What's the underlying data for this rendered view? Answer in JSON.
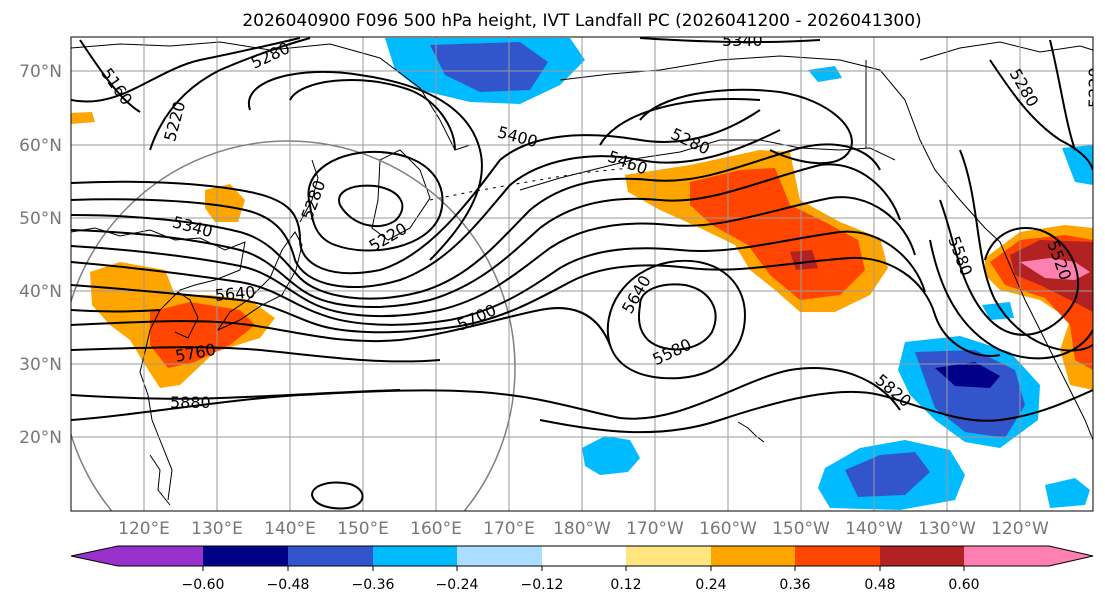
{
  "title": "2026040900 F096 500 hPa height, IVT Landfall PC (2026041200 - 2026041300)",
  "colors": {
    "land": "#ffffff",
    "grid": "#9a9a9a",
    "coast": "#000000",
    "contour": "#000000",
    "circle": "#808080"
  },
  "lat_labels": [
    "70°N",
    "60°N",
    "50°N",
    "40°N",
    "30°N",
    "20°N"
  ],
  "lon_labels": [
    "120°E",
    "130°E",
    "140°E",
    "150°E",
    "160°E",
    "170°E",
    "180°W",
    "170°W",
    "160°W",
    "150°W",
    "140°W",
    "130°W",
    "120°W"
  ],
  "contour_labels": [
    "5160",
    "5280",
    "5220",
    "5340",
    "5280",
    "5220",
    "5400",
    "5460",
    "5280",
    "5580",
    "5520",
    "5640",
    "5700",
    "5760",
    "5880",
    "5580",
    "5640",
    "5820",
    "5340",
    "5280",
    "5220"
  ],
  "colorbar": {
    "ticks": [
      "−0.60",
      "−0.48",
      "−0.36",
      "−0.24",
      "−0.12",
      "0.12",
      "0.24",
      "0.36",
      "0.48",
      "0.60"
    ],
    "colors": [
      "#9932cc",
      "#000088",
      "#3355cc",
      "#00bbff",
      "#aaddff",
      "#ffffff",
      "#ffe680",
      "#ffa500",
      "#ff4500",
      "#b22222",
      "#ff80b0"
    ]
  }
}
